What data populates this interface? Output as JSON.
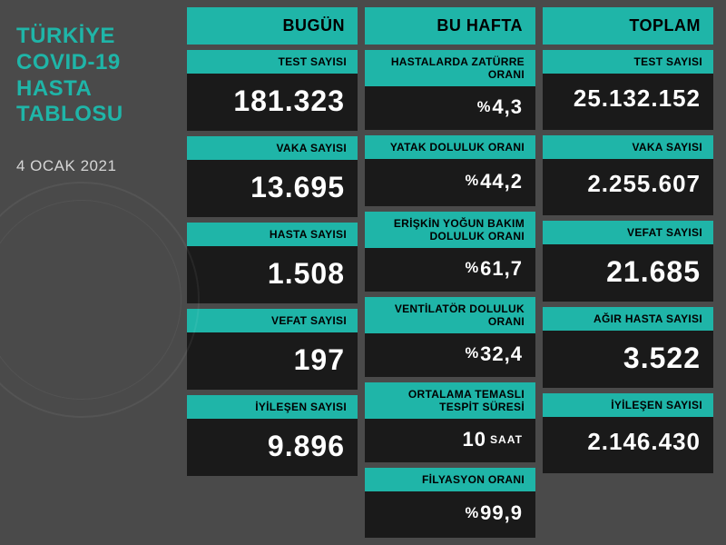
{
  "theme": {
    "accent": "#1fb5a8",
    "dark_tile": "#1a1a1a",
    "bg": "#4a4a4a",
    "text_light": "#ffffff",
    "text_muted": "#d5d5d5"
  },
  "header": {
    "title_line1": "TÜRKİYE",
    "title_line2": "COVID-19",
    "title_line3": "HASTA",
    "title_line4": "TABLOSU",
    "date": "4 OCAK 2021"
  },
  "columns": {
    "today": {
      "header": "BUGÜN",
      "stats": {
        "tests": {
          "label": "TEST SAYISI",
          "value": "181.323"
        },
        "cases": {
          "label": "VAKA SAYISI",
          "value": "13.695"
        },
        "patients": {
          "label": "HASTA SAYISI",
          "value": "1.508"
        },
        "deaths": {
          "label": "VEFAT SAYISI",
          "value": "197"
        },
        "recovered": {
          "label": "İYİLEŞEN SAYISI",
          "value": "9.896"
        }
      }
    },
    "week": {
      "header": "BU HAFTA",
      "stats": {
        "pneumonia": {
          "label": "HASTALARDA ZATÜRRE ORANI",
          "prefix": "%",
          "value": "4,3"
        },
        "bed": {
          "label": "YATAK DOLULUK ORANI",
          "prefix": "%",
          "value": "44,2"
        },
        "icu": {
          "label": "ERİŞKİN YOĞUN BAKIM DOLULUK ORANI",
          "prefix": "%",
          "value": "61,7"
        },
        "vent": {
          "label": "VENTİLATÖR DOLULUK ORANI",
          "prefix": "%",
          "value": "32,4"
        },
        "contact": {
          "label": "ORTALAMA TEMASLI TESPİT SÜRESİ",
          "value": "10",
          "suffix": "SAAT"
        },
        "filiation": {
          "label": "FİLYASYON ORANI",
          "prefix": "%",
          "value": "99,9"
        }
      }
    },
    "total": {
      "header": "TOPLAM",
      "stats": {
        "tests": {
          "label": "TEST SAYISI",
          "value": "25.132.152"
        },
        "cases": {
          "label": "VAKA SAYISI",
          "value": "2.255.607"
        },
        "deaths": {
          "label": "VEFAT SAYISI",
          "value": "21.685"
        },
        "critical": {
          "label": "AĞIR HASTA SAYISI",
          "value": "3.522"
        },
        "recovered": {
          "label": "İYİLEŞEN SAYISI",
          "value": "2.146.430"
        }
      }
    }
  }
}
